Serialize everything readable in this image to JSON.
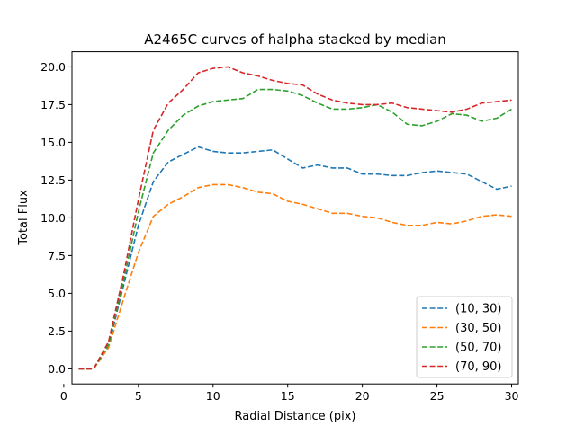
{
  "chart_data": {
    "type": "line",
    "title": "A2465C curves of halpha stacked by median",
    "xlabel": "Radial Distance (pix)",
    "ylabel": "Total Flux",
    "xlim": [
      0.55,
      30.45
    ],
    "ylim": [
      -1.0,
      21.0
    ],
    "xticks": [
      0,
      5,
      10,
      15,
      20,
      25,
      30
    ],
    "yticks": [
      0.0,
      2.5,
      5.0,
      7.5,
      10.0,
      12.5,
      15.0,
      17.5,
      20.0
    ],
    "xtick_labels": [
      "0",
      "5",
      "10",
      "15",
      "20",
      "25",
      "30"
    ],
    "ytick_labels": [
      "0.0",
      "2.5",
      "5.0",
      "7.5",
      "10.0",
      "12.5",
      "15.0",
      "17.5",
      "20.0"
    ],
    "line_style": "dashed",
    "legend_position": "lower-right",
    "x": [
      1,
      2,
      3,
      4,
      5,
      6,
      7,
      8,
      9,
      10,
      11,
      12,
      13,
      14,
      15,
      16,
      17,
      18,
      19,
      20,
      21,
      22,
      23,
      24,
      25,
      26,
      27,
      28,
      29,
      30
    ],
    "series": [
      {
        "name": "(10, 30)",
        "color": "#1f77b4",
        "values": [
          0.0,
          0.0,
          1.5,
          5.5,
          9.5,
          12.4,
          13.7,
          14.2,
          14.7,
          14.4,
          14.3,
          14.3,
          14.4,
          14.5,
          13.9,
          13.3,
          13.5,
          13.3,
          13.3,
          12.9,
          12.9,
          12.8,
          12.8,
          13.0,
          13.1,
          13.0,
          12.9,
          12.4,
          11.9,
          12.1
        ]
      },
      {
        "name": "(30, 50)",
        "color": "#ff7f0e",
        "values": [
          0.0,
          0.0,
          1.4,
          4.6,
          7.7,
          10.1,
          10.9,
          11.4,
          12.0,
          12.2,
          12.2,
          12.0,
          11.7,
          11.6,
          11.1,
          10.9,
          10.6,
          10.3,
          10.3,
          10.1,
          10.0,
          9.7,
          9.5,
          9.5,
          9.7,
          9.6,
          9.8,
          10.1,
          10.2,
          10.1
        ]
      },
      {
        "name": "(50, 70)",
        "color": "#2ca02c",
        "values": [
          0.0,
          0.0,
          1.6,
          5.8,
          10.4,
          14.3,
          15.8,
          16.8,
          17.4,
          17.7,
          17.8,
          17.9,
          18.5,
          18.5,
          18.4,
          18.1,
          17.6,
          17.2,
          17.2,
          17.3,
          17.5,
          17.0,
          16.2,
          16.1,
          16.4,
          16.9,
          16.8,
          16.4,
          16.6,
          17.2
        ]
      },
      {
        "name": "(70, 90)",
        "color": "#d62728",
        "values": [
          0.0,
          0.0,
          1.8,
          6.2,
          11.2,
          15.8,
          17.6,
          18.5,
          19.6,
          19.9,
          20.0,
          19.6,
          19.4,
          19.1,
          18.9,
          18.8,
          18.2,
          17.8,
          17.6,
          17.5,
          17.5,
          17.6,
          17.3,
          17.2,
          17.1,
          17.0,
          17.2,
          17.6,
          17.7,
          17.8
        ]
      }
    ]
  }
}
